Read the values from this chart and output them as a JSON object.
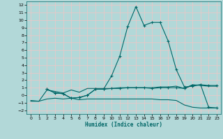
{
  "xlabel": "Humidex (Indice chaleur)",
  "bg_color": "#b2d8d8",
  "grid_color": "#e8c8c8",
  "line_color": "#006666",
  "xlim": [
    -0.5,
    23.5
  ],
  "ylim": [
    -2.5,
    12.5
  ],
  "xticks": [
    0,
    1,
    2,
    3,
    4,
    5,
    6,
    7,
    8,
    9,
    10,
    11,
    12,
    13,
    14,
    15,
    16,
    17,
    18,
    19,
    20,
    21,
    22,
    23
  ],
  "yticks": [
    -2,
    -1,
    0,
    1,
    2,
    3,
    4,
    5,
    6,
    7,
    8,
    9,
    10,
    11,
    12
  ],
  "series": [
    {
      "x": [
        0,
        1,
        2,
        3,
        4,
        5,
        6,
        7,
        8,
        9,
        10,
        11,
        12,
        13,
        14,
        15,
        16,
        17,
        18,
        19,
        20,
        21,
        22,
        23
      ],
      "y": [
        -0.8,
        -0.8,
        -0.5,
        -0.4,
        -0.5,
        -0.4,
        -0.6,
        -0.5,
        -0.5,
        -0.5,
        -0.5,
        -0.5,
        -0.5,
        -0.5,
        -0.5,
        -0.5,
        -0.6,
        -0.6,
        -0.7,
        -1.3,
        -1.6,
        -1.7,
        -1.7,
        -1.7
      ],
      "marker": false
    },
    {
      "x": [
        0,
        1,
        2,
        3,
        4,
        5,
        6,
        7,
        8,
        9,
        10,
        11,
        12,
        13,
        14,
        15,
        16,
        17,
        18,
        19,
        20,
        21,
        22,
        23
      ],
      "y": [
        -0.7,
        -0.8,
        0.7,
        0.5,
        0.3,
        0.7,
        0.4,
        0.9,
        0.9,
        0.9,
        0.9,
        1.0,
        1.0,
        1.0,
        1.0,
        1.0,
        1.1,
        1.1,
        1.2,
        0.9,
        1.4,
        1.3,
        1.2,
        1.2
      ],
      "marker": false
    },
    {
      "x": [
        2,
        3,
        4,
        5,
        6,
        7,
        8,
        9,
        10,
        11,
        12,
        13,
        14,
        15,
        16,
        17,
        18,
        19,
        20,
        21,
        22,
        23
      ],
      "y": [
        0.8,
        0.3,
        0.2,
        -0.4,
        -0.3,
        0.0,
        0.8,
        0.8,
        0.9,
        0.9,
        1.0,
        1.0,
        1.0,
        0.9,
        1.0,
        1.0,
        1.0,
        0.9,
        1.3,
        1.4,
        1.3,
        1.3
      ],
      "marker": true
    },
    {
      "x": [
        2,
        3,
        4,
        5,
        6,
        7,
        8,
        9,
        10,
        11,
        12,
        13,
        14,
        15,
        16,
        17,
        18,
        19,
        20,
        21,
        22,
        23
      ],
      "y": [
        0.8,
        0.3,
        0.2,
        -0.4,
        -0.3,
        0.0,
        0.8,
        0.8,
        2.6,
        5.2,
        9.2,
        11.8,
        9.3,
        9.7,
        9.7,
        7.2,
        3.4,
        1.1,
        1.2,
        1.4,
        -1.6,
        -1.7
      ],
      "marker": true
    }
  ]
}
